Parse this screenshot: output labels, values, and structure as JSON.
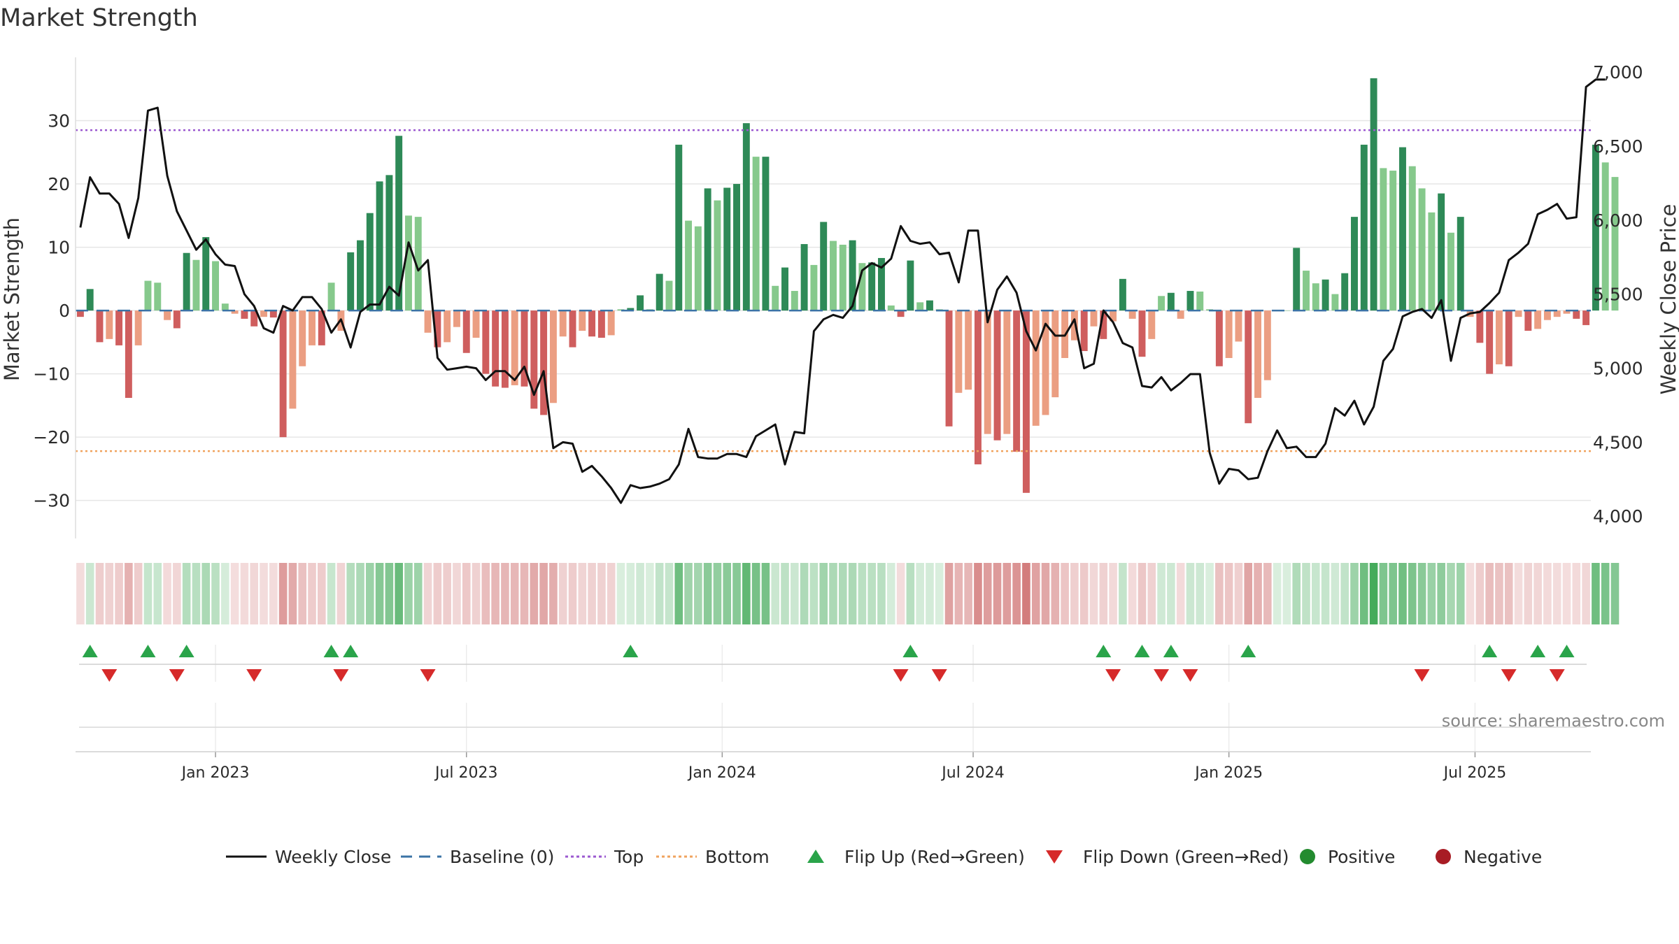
{
  "chart_data": {
    "type": "bar",
    "title": "Market Strength",
    "ylabel_left": "Market Strength",
    "ylabel_right": "Weekly Close Price",
    "source": "source: sharemaestro.com",
    "left_ylim": [
      -36,
      40
    ],
    "left_yticks": [
      -30,
      -20,
      -10,
      0,
      10,
      20,
      30
    ],
    "left_ytick_labels": [
      "−30",
      "−20",
      "−10",
      "0",
      "10",
      "20",
      "30"
    ],
    "right_ylim": [
      3850,
      7100
    ],
    "right_yticks": [
      4000,
      4500,
      5000,
      5500,
      6000,
      6500,
      7000
    ],
    "right_ytick_labels": [
      "4,000",
      "4,500",
      "5,000",
      "5,500",
      "6,000",
      "6,500",
      "7,000"
    ],
    "x_tick_labels": [
      "Jan 2023",
      "Jul 2023",
      "Jan 2024",
      "Jul 2024",
      "Jan 2025",
      "Jul 2025"
    ],
    "x_tick_weeks": [
      14,
      40,
      66.5,
      92.5,
      119,
      144.5
    ],
    "num_weeks": 157,
    "top_line": 28.5,
    "bottom_line": -22.2,
    "baseline": 0,
    "strength": [
      -1,
      3.4,
      -5,
      -4.5,
      -5.5,
      -13.8,
      -5.5,
      4.7,
      4.4,
      -1.5,
      -2.8,
      9.1,
      8,
      11.6,
      7.8,
      1.1,
      -0.5,
      -1.3,
      -2.5,
      -1,
      -1.1,
      -20,
      -15.5,
      -8.8,
      -5.5,
      -5.5,
      4.4,
      -3.2,
      9.2,
      11.1,
      15.4,
      20.4,
      21.4,
      27.6,
      15,
      14.8,
      -3.5,
      -5.8,
      -5,
      -2.6,
      -6.7,
      -4.3,
      -10,
      -12,
      -12.2,
      -11.8,
      -12,
      -15.5,
      -16.5,
      -14.6,
      -4.1,
      -5.8,
      -3.2,
      -4.1,
      -4.3,
      -3.9,
      0.2,
      0.4,
      2.4,
      0.2,
      5.8,
      4.7,
      26.2,
      14.2,
      13.3,
      19.3,
      17.4,
      19.4,
      20,
      29.6,
      24.3,
      24.3,
      3.9,
      6.8,
      3.1,
      10.5,
      7.2,
      14,
      11,
      10.4,
      11.1,
      7.5,
      7.6,
      8.3,
      0.8,
      -1,
      7.9,
      1.3,
      1.6,
      0.2,
      -18.3,
      -13,
      -12.5,
      -24.3,
      -19.5,
      -20.5,
      -19.5,
      -22.3,
      -28.8,
      -18.2,
      -16.5,
      -13.7,
      -7.5,
      -4.7,
      -6.4,
      -2.5,
      -4.5,
      -1.7,
      5,
      -1.3,
      -7.3,
      -4.5,
      2.3,
      2.8,
      -1.3,
      3.1,
      3,
      0.2,
      -8.8,
      -7.5,
      -4.9,
      -17.8,
      -13.8,
      -11,
      0.1,
      0,
      9.9,
      6.3,
      4.3,
      4.9,
      2.6,
      5.9,
      14.8,
      26.2,
      36.7,
      22.5,
      22.1,
      25.8,
      22.8,
      19.3,
      15.5,
      18.5,
      12.3,
      14.8,
      -1,
      -5.1,
      -10,
      -8.5,
      -8.8,
      -1,
      -3.2,
      -2.9,
      -1.5,
      -1,
      -0.5,
      -1.3,
      -2.3,
      26.2,
      23.4,
      21.1
    ],
    "weekly_close": [
      5950,
      6290,
      6180,
      6180,
      6110,
      5880,
      6150,
      6740,
      6760,
      6300,
      6060,
      5930,
      5800,
      5870,
      5770,
      5700,
      5690,
      5500,
      5420,
      5270,
      5240,
      5420,
      5390,
      5480,
      5480,
      5400,
      5240,
      5330,
      5140,
      5380,
      5430,
      5430,
      5550,
      5490,
      5850,
      5660,
      5730,
      5070,
      4990,
      5000,
      5010,
      5000,
      4920,
      4980,
      4980,
      4920,
      5010,
      4820,
      4980,
      4460,
      4500,
      4490,
      4300,
      4340,
      4270,
      4190,
      4090,
      4210,
      4190,
      4200,
      4220,
      4250,
      4350,
      4590,
      4400,
      4390,
      4390,
      4420,
      4420,
      4400,
      4540,
      4580,
      4620,
      4350,
      4570,
      4560,
      5250,
      5330,
      5360,
      5340,
      5420,
      5660,
      5710,
      5680,
      5740,
      5960,
      5860,
      5840,
      5850,
      5770,
      5780,
      5580,
      5930,
      5930,
      5310,
      5530,
      5620,
      5510,
      5250,
      5120,
      5300,
      5220,
      5220,
      5330,
      5000,
      5030,
      5390,
      5310,
      5170,
      5140,
      4880,
      4870,
      4940,
      4850,
      4900,
      4960,
      4960,
      4430,
      4220,
      4320,
      4310,
      4250,
      4260,
      4440,
      4580,
      4460,
      4470,
      4400,
      4400,
      4490,
      4730,
      4680,
      4780,
      4620,
      4740,
      5050,
      5130,
      5350,
      5380,
      5400,
      5340,
      5460,
      5050,
      5340,
      5370,
      5380,
      5440,
      5510,
      5730,
      5780,
      5840,
      6040,
      6070,
      6110,
      6010,
      6020,
      6900,
      6950,
      6950
    ],
    "flip_up_weeks": [
      1,
      7,
      11,
      26,
      28,
      57,
      86,
      106,
      110,
      113,
      121,
      146,
      151,
      154
    ],
    "flip_down_weeks": [
      3,
      10,
      18,
      27,
      36,
      85,
      89,
      107,
      112,
      115,
      139,
      148,
      153
    ],
    "legend": [
      {
        "key": "line",
        "label": "Weekly Close",
        "color": "#111111"
      },
      {
        "key": "dash",
        "label": "Baseline (0)",
        "color": "#3b73a6"
      },
      {
        "key": "dot",
        "label": "Top",
        "color": "#9b59d0"
      },
      {
        "key": "dot",
        "label": "Bottom",
        "color": "#f0a35e"
      },
      {
        "key": "up",
        "label": "Flip Up (Red→Green)",
        "color": "#2aa44a"
      },
      {
        "key": "down",
        "label": "Flip Down (Green→Red)",
        "color": "#d62a2a"
      },
      {
        "key": "circle",
        "label": "Positive",
        "color": "#238b2f"
      },
      {
        "key": "circle",
        "label": "Negative",
        "color": "#a81c24"
      }
    ],
    "colors": {
      "pos_strong": "#2e8a57",
      "pos_weak": "#86c98c",
      "neg_strong": "#cf5e5e",
      "neg_weak": "#eb9e82",
      "ribbon_pos": "#3fa856",
      "ribbon_neg": "#c95f5f",
      "price_line": "#111111",
      "baseline": "#3b73a6",
      "top": "#9b59d0",
      "bottom": "#f0a35e",
      "flip_up": "#2aa44a",
      "flip_down": "#d62a2a",
      "grid": "#e6e6e6",
      "source_text": "#888888"
    }
  }
}
